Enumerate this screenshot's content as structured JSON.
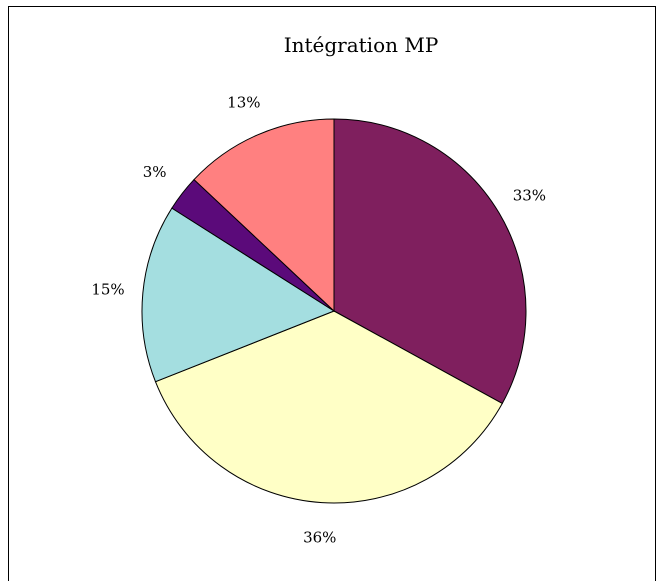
{
  "chart_data": {
    "type": "pie",
    "title": "Intégration MP",
    "slices": [
      {
        "label": "33%",
        "value": 33,
        "color": "#7F1F5E"
      },
      {
        "label": "36%",
        "value": 36,
        "color": "#FFFFC6"
      },
      {
        "label": "15%",
        "value": 15,
        "color": "#A4DEE0"
      },
      {
        "label": "3%",
        "value": 3,
        "color": "#5B0A7A"
      },
      {
        "label": "13%",
        "value": 13,
        "color": "#FF8080"
      }
    ],
    "start": "12 o'clock",
    "direction": "clockwise",
    "legend": "none"
  }
}
